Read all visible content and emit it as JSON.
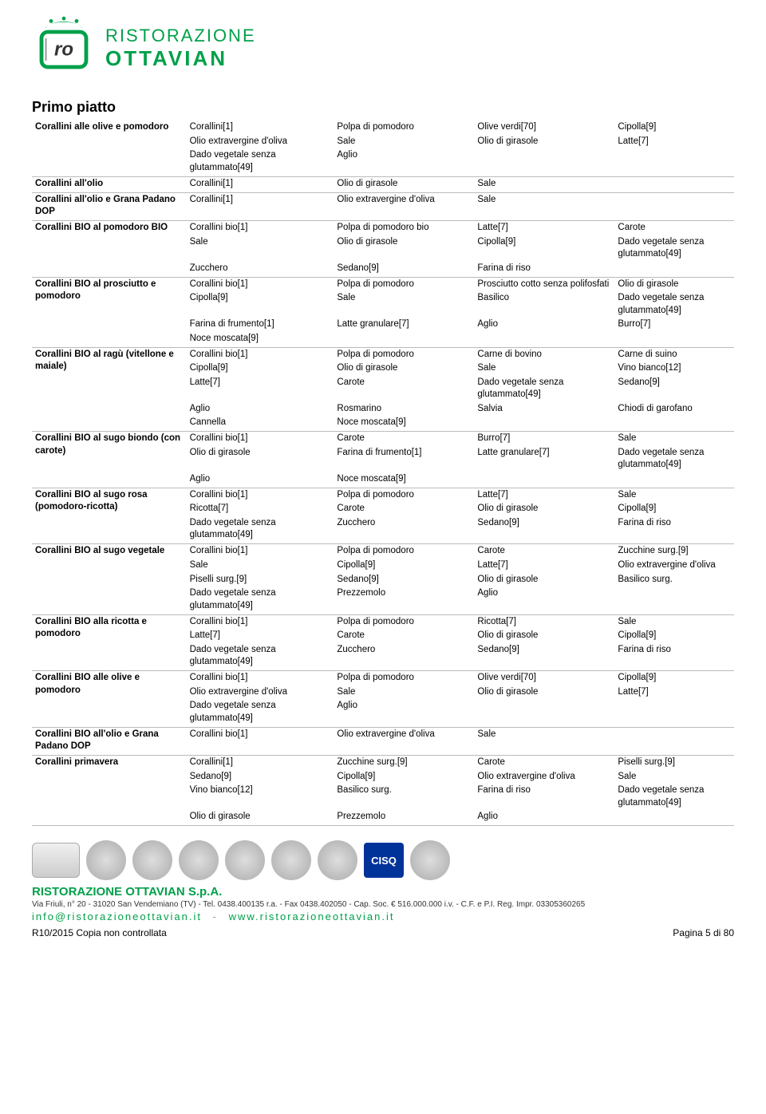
{
  "brand": {
    "line1": "RISTORAZIONE",
    "line2": "OTTAVIAN"
  },
  "section_title": "Primo piatto",
  "dishes": [
    {
      "name": "Corallini alle olive e pomodoro",
      "rows": [
        [
          "Corallini[1]",
          "Polpa di pomodoro",
          "Olive verdi[70]",
          "Cipolla[9]"
        ],
        [
          "Olio extravergine d'oliva",
          "Sale",
          "Olio di girasole",
          "Latte[7]"
        ],
        [
          "Dado vegetale senza glutammato[49]",
          "Aglio",
          "",
          ""
        ]
      ]
    },
    {
      "name": "Corallini all'olio",
      "rows": [
        [
          "Corallini[1]",
          "Olio di girasole",
          "Sale",
          ""
        ]
      ]
    },
    {
      "name": "Corallini all'olio e Grana Padano DOP",
      "rows": [
        [
          "Corallini[1]",
          "Olio extravergine d'oliva",
          "Sale",
          ""
        ]
      ]
    },
    {
      "name": "Corallini BIO al pomodoro BIO",
      "rows": [
        [
          "Corallini bio[1]",
          "Polpa di pomodoro bio",
          "Latte[7]",
          "Carote"
        ],
        [
          "Sale",
          "Olio di girasole",
          "Cipolla[9]",
          "Dado vegetale senza glutammato[49]"
        ],
        [
          "Zucchero",
          "Sedano[9]",
          "Farina di riso",
          ""
        ]
      ]
    },
    {
      "name": "Corallini BIO al prosciutto e pomodoro",
      "rows": [
        [
          "Corallini bio[1]",
          "Polpa di pomodoro",
          "Prosciutto cotto senza polifosfati",
          "Olio di girasole"
        ],
        [
          "Cipolla[9]",
          "Sale",
          "Basilico",
          "Dado vegetale senza glutammato[49]"
        ],
        [
          "Farina di frumento[1]",
          "Latte granulare[7]",
          "Aglio",
          "Burro[7]"
        ],
        [
          "Noce moscata[9]",
          "",
          "",
          ""
        ]
      ]
    },
    {
      "name": "Corallini BIO al ragù (vitellone e maiale)",
      "rows": [
        [
          "Corallini bio[1]",
          "Polpa di pomodoro",
          "Carne di bovino",
          "Carne di suino"
        ],
        [
          "Cipolla[9]",
          "Olio di girasole",
          "Sale",
          "Vino bianco[12]"
        ],
        [
          "Latte[7]",
          "Carote",
          "Dado vegetale senza glutammato[49]",
          "Sedano[9]"
        ],
        [
          "Aglio",
          "Rosmarino",
          "Salvia",
          "Chiodi di garofano"
        ],
        [
          "Cannella",
          "Noce moscata[9]",
          "",
          ""
        ]
      ]
    },
    {
      "name": "Corallini BIO al sugo biondo (con carote)",
      "rows": [
        [
          "Corallini bio[1]",
          "Carote",
          "Burro[7]",
          "Sale"
        ],
        [
          "Olio di girasole",
          "Farina di frumento[1]",
          "Latte granulare[7]",
          "Dado vegetale senza glutammato[49]"
        ],
        [
          "Aglio",
          "Noce moscata[9]",
          "",
          ""
        ]
      ]
    },
    {
      "name": "Corallini BIO al sugo rosa (pomodoro-ricotta)",
      "rows": [
        [
          "Corallini bio[1]",
          "Polpa di pomodoro",
          "Latte[7]",
          "Sale"
        ],
        [
          "Ricotta[7]",
          "Carote",
          "Olio di girasole",
          "Cipolla[9]"
        ],
        [
          "Dado vegetale senza glutammato[49]",
          "Zucchero",
          "Sedano[9]",
          "Farina di riso"
        ]
      ]
    },
    {
      "name": "Corallini BIO al sugo vegetale",
      "rows": [
        [
          "Corallini bio[1]",
          "Polpa di pomodoro",
          "Carote",
          "Zucchine surg.[9]"
        ],
        [
          "Sale",
          "Cipolla[9]",
          "Latte[7]",
          "Olio extravergine d'oliva"
        ],
        [
          "Piselli surg.[9]",
          "Sedano[9]",
          "Olio di girasole",
          "Basilico surg."
        ],
        [
          "Dado vegetale senza glutammato[49]",
          "Prezzemolo",
          "Aglio",
          ""
        ]
      ]
    },
    {
      "name": "Corallini BIO alla ricotta e pomodoro",
      "rows": [
        [
          "Corallini bio[1]",
          "Polpa di pomodoro",
          "Ricotta[7]",
          "Sale"
        ],
        [
          "Latte[7]",
          "Carote",
          "Olio di girasole",
          "Cipolla[9]"
        ],
        [
          "Dado vegetale senza glutammato[49]",
          "Zucchero",
          "Sedano[9]",
          "Farina di riso"
        ]
      ]
    },
    {
      "name": "Corallini BIO alle olive e pomodoro",
      "rows": [
        [
          "Corallini bio[1]",
          "Polpa di pomodoro",
          "Olive verdi[70]",
          "Cipolla[9]"
        ],
        [
          "Olio extravergine d'oliva",
          "Sale",
          "Olio di girasole",
          "Latte[7]"
        ],
        [
          "Dado vegetale senza glutammato[49]",
          "Aglio",
          "",
          ""
        ]
      ]
    },
    {
      "name": "Corallini BIO all'olio e Grana Padano DOP",
      "rows": [
        [
          "Corallini bio[1]",
          "Olio extravergine d'oliva",
          "Sale",
          ""
        ]
      ]
    },
    {
      "name": "Corallini primavera",
      "rows": [
        [
          "Corallini[1]",
          "Zucchine surg.[9]",
          "Carote",
          "Piselli surg.[9]"
        ],
        [
          "Sedano[9]",
          "Cipolla[9]",
          "Olio extravergine d'oliva",
          "Sale"
        ],
        [
          "Vino bianco[12]",
          "Basilico surg.",
          "Farina di riso",
          "Dado vegetale senza glutammato[49]"
        ],
        [
          "Olio di girasole",
          "Prezzemolo",
          "Aglio",
          ""
        ]
      ]
    }
  ],
  "cisq_label": "CISQ",
  "footer": {
    "company": "RISTORAZIONE OTTAVIAN S.p.A.",
    "address": "Via Friuli, n° 20 - 31020 San Vendemiano (TV) - Tel. 0438.400135 r.a. - Fax 0438.402050 - Cap. Soc. € 516.000.000 i.v. - C.F. e P.I. Reg. Impr. 03305360265",
    "email_url": "info@ristorazioneottavian.it",
    "www_url": "www.ristorazioneottavian.it",
    "left": "R10/2015 Copia non controllata",
    "right": "Pagina 5 di 80"
  }
}
